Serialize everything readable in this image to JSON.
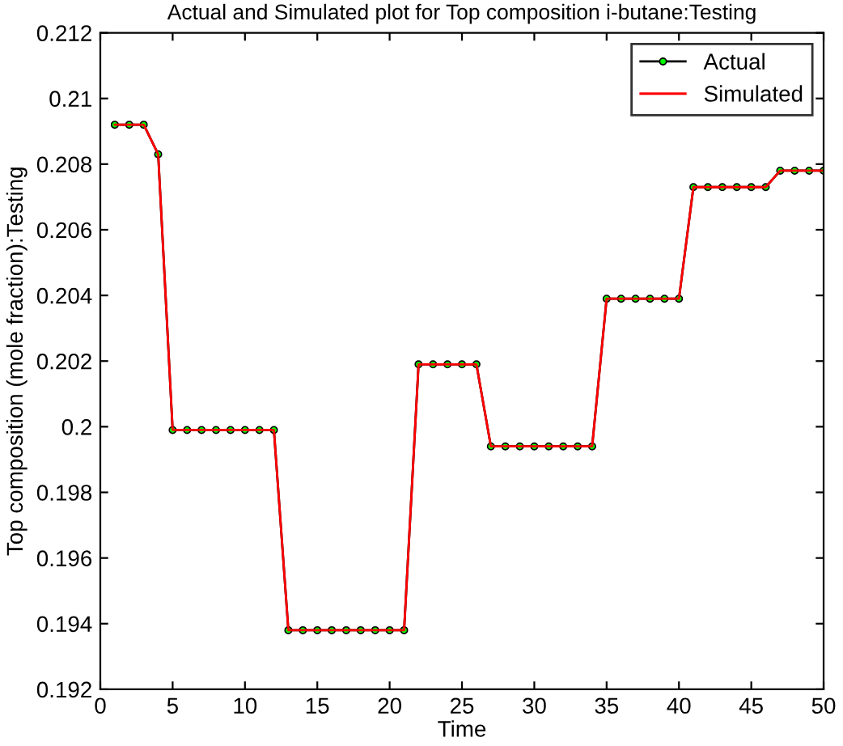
{
  "chart_data": {
    "type": "line",
    "title": "Actual and Simulated plot for Top composition i-butane:Testing",
    "xlabel": "Time",
    "ylabel": "Top composition (mole fraction):Testing",
    "x": [
      1,
      2,
      3,
      4,
      5,
      6,
      7,
      8,
      9,
      10,
      11,
      12,
      13,
      14,
      15,
      16,
      17,
      18,
      19,
      20,
      21,
      22,
      23,
      24,
      25,
      26,
      27,
      28,
      29,
      30,
      31,
      32,
      33,
      34,
      35,
      36,
      37,
      38,
      39,
      40,
      41,
      42,
      43,
      44,
      45,
      46,
      47,
      48,
      49,
      50
    ],
    "series": [
      {
        "name": "Actual",
        "color": "#000000",
        "marker": "circle",
        "values": [
          0.2092,
          0.2092,
          0.2092,
          0.2083,
          0.1999,
          0.1999,
          0.1999,
          0.1999,
          0.1999,
          0.1999,
          0.1999,
          0.1999,
          0.1938,
          0.1938,
          0.1938,
          0.1938,
          0.1938,
          0.1938,
          0.1938,
          0.1938,
          0.1938,
          0.2019,
          0.2019,
          0.2019,
          0.2019,
          0.2019,
          0.1994,
          0.1994,
          0.1994,
          0.1994,
          0.1994,
          0.1994,
          0.1994,
          0.1994,
          0.2039,
          0.2039,
          0.2039,
          0.2039,
          0.2039,
          0.2039,
          0.2073,
          0.2073,
          0.2073,
          0.2073,
          0.2073,
          0.2073,
          0.2078,
          0.2078,
          0.2078,
          0.2078
        ]
      },
      {
        "name": "Simulated",
        "color": "#ff0000",
        "values": [
          0.2092,
          0.2092,
          0.2092,
          0.2083,
          0.1999,
          0.1999,
          0.1999,
          0.1999,
          0.1999,
          0.1999,
          0.1999,
          0.1999,
          0.1938,
          0.1938,
          0.1938,
          0.1938,
          0.1938,
          0.1938,
          0.1938,
          0.1938,
          0.1938,
          0.2019,
          0.2019,
          0.2019,
          0.2019,
          0.2019,
          0.1994,
          0.1994,
          0.1994,
          0.1994,
          0.1994,
          0.1994,
          0.1994,
          0.1994,
          0.2039,
          0.2039,
          0.2039,
          0.2039,
          0.2039,
          0.2039,
          0.2073,
          0.2073,
          0.2073,
          0.2073,
          0.2073,
          0.2073,
          0.2078,
          0.2078,
          0.2078,
          0.2078
        ]
      }
    ],
    "xlim": [
      0,
      50
    ],
    "xticks": [
      0,
      5,
      10,
      15,
      20,
      25,
      30,
      35,
      40,
      45,
      50
    ],
    "ylim": [
      0.192,
      0.212
    ],
    "yticks": [
      0.192,
      0.194,
      0.196,
      0.198,
      0.2,
      0.202,
      0.204,
      0.206,
      0.208,
      0.21,
      0.212
    ],
    "grid": false,
    "legend": "top right",
    "line_style": "solid"
  }
}
